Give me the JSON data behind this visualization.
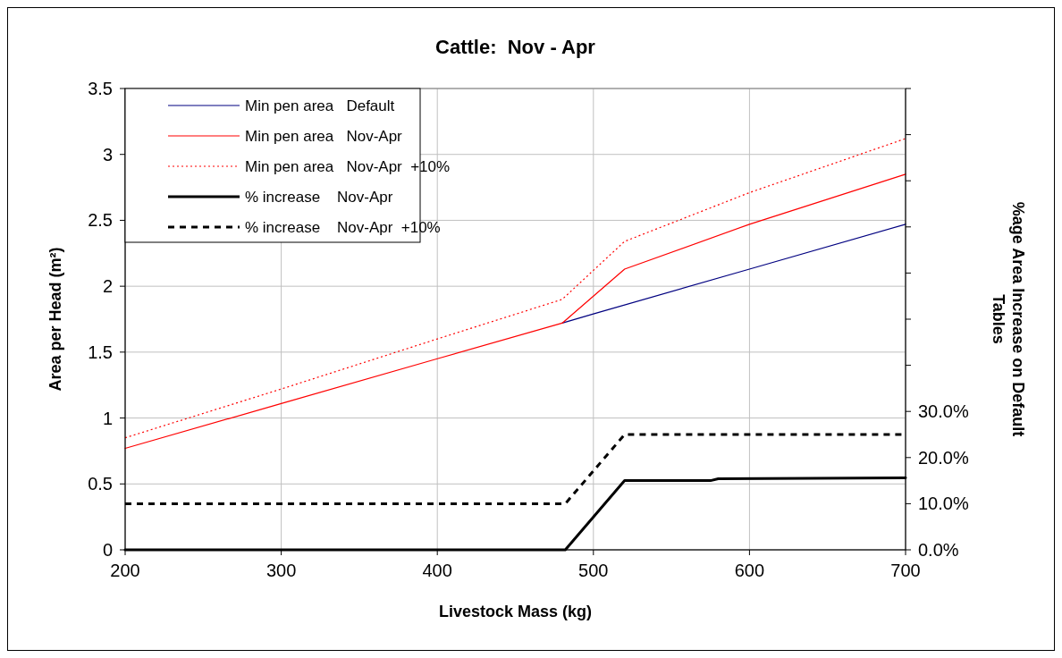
{
  "chart_data": {
    "type": "line",
    "title": "Cattle:  Nov - Apr",
    "xlabel": "Livestock Mass (kg)",
    "ylabel": "Area per Head (m²)",
    "y2label": "%age Area Increase on Default Tables",
    "xlim": [
      200,
      700
    ],
    "xticks": [
      200,
      300,
      400,
      500,
      600,
      700
    ],
    "ylim": [
      0,
      3.5
    ],
    "yticks": [
      0,
      0.5,
      1,
      1.5,
      2,
      2.5,
      3,
      3.5
    ],
    "y2lim": [
      0,
      100
    ],
    "y2ticks": [
      {
        "value": 0,
        "label": "0.0%"
      },
      {
        "value": 10,
        "label": "10.0%"
      },
      {
        "value": 20,
        "label": "20.0%"
      },
      {
        "value": 30,
        "label": "30.0%"
      },
      {
        "value": 40,
        "label": null
      },
      {
        "value": 50,
        "label": null
      },
      {
        "value": 60,
        "label": null
      },
      {
        "value": 70,
        "label": null
      },
      {
        "value": 80,
        "label": null
      },
      {
        "value": 90,
        "label": null
      },
      {
        "value": 100,
        "label": null
      }
    ],
    "grid": true,
    "legend": "top left",
    "marker": "none",
    "series": [
      {
        "name": "Min pen area   Default",
        "color": "#000080",
        "line_style": "solid",
        "x": [
          480,
          500,
          600,
          700
        ],
        "values": [
          1.72,
          1.79,
          2.13,
          2.47
        ]
      },
      {
        "name": "Min pen area   Nov-Apr",
        "color": "#ff0000",
        "line_style": "solid",
        "x": [
          200,
          300,
          400,
          480,
          520,
          600,
          700
        ],
        "values": [
          0.77,
          1.11,
          1.45,
          1.72,
          2.13,
          2.47,
          2.85
        ]
      },
      {
        "name": "Min pen area   Nov-Apr  +10%",
        "color": "#ff0000",
        "line_style": "dotted",
        "x": [
          200,
          300,
          400,
          480,
          520,
          600,
          700
        ],
        "values": [
          0.85,
          1.22,
          1.6,
          1.9,
          2.34,
          2.71,
          3.12
        ]
      },
      {
        "name": "% increase    Nov-Apr",
        "color": "#000000",
        "line_style": "solid",
        "axis": "y2",
        "x": [
          200,
          482,
          520,
          575,
          580,
          700
        ],
        "values": [
          0,
          0,
          15,
          15,
          15.4,
          15.6
        ]
      },
      {
        "name": "% increase    Nov-Apr  +10%",
        "color": "#000000",
        "line_style": "dashed",
        "axis": "y2",
        "x": [
          200,
          482,
          520,
          700
        ],
        "values": [
          10,
          10,
          25,
          25
        ]
      }
    ]
  }
}
